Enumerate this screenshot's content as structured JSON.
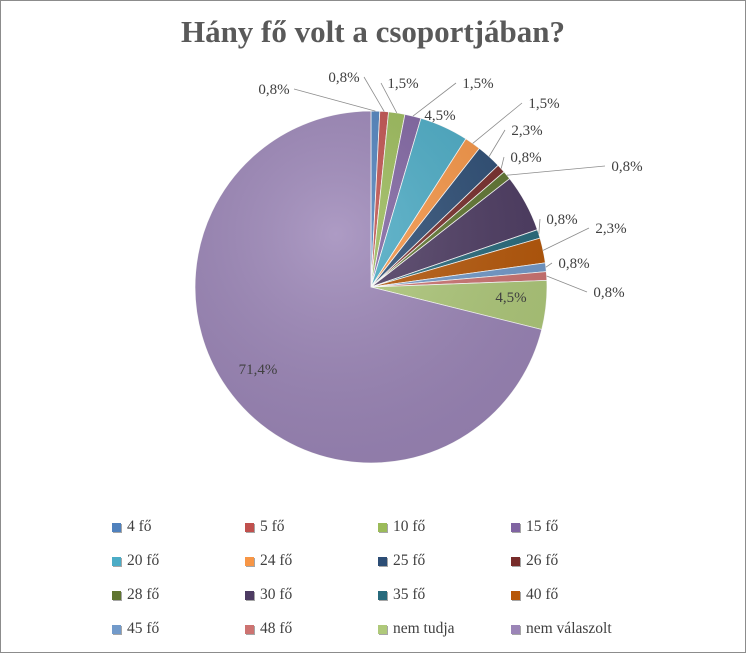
{
  "chart_data": {
    "type": "pie",
    "title": "Hány fő volt a csoportjában?",
    "legend_position": "bottom",
    "slices": [
      {
        "label": "4 fő",
        "value": 0.8,
        "value_label": "0,8%",
        "color": "#4f81bd"
      },
      {
        "label": "5 fő",
        "value": 0.8,
        "value_label": "0,8%",
        "color": "#c0504d"
      },
      {
        "label": "10 fő",
        "value": 1.5,
        "value_label": "1,5%",
        "color": "#9bbb59"
      },
      {
        "label": "15 fő",
        "value": 1.5,
        "value_label": "1,5%",
        "color": "#8064a2"
      },
      {
        "label": "20 fő",
        "value": 4.5,
        "value_label": "4,5%",
        "color": "#4bacc6"
      },
      {
        "label": "24 fő",
        "value": 1.5,
        "value_label": "1,5%",
        "color": "#f79646"
      },
      {
        "label": "25 fő",
        "value": 2.3,
        "value_label": "2,3%",
        "color": "#2c4d75"
      },
      {
        "label": "26 fő",
        "value": 0.8,
        "value_label": "0,8%",
        "color": "#772c2a"
      },
      {
        "label": "28 fő",
        "value": 0.8,
        "value_label": "0,8%",
        "color": "#5f7530"
      },
      {
        "label": "30 fő",
        "value": 5.3,
        "value_label": "",
        "color": "#4d3b62"
      },
      {
        "label": "35 fő",
        "value": 0.8,
        "value_label": "0,8%",
        "color": "#276a7c"
      },
      {
        "label": "40 fő",
        "value": 2.3,
        "value_label": "2,3%",
        "color": "#b65708"
      },
      {
        "label": "45 fő",
        "value": 0.8,
        "value_label": "0,8%",
        "color": "#729aca"
      },
      {
        "label": "48 fő",
        "value": 0.8,
        "value_label": "0,8%",
        "color": "#cd7371"
      },
      {
        "label": "nem tudja",
        "value": 4.5,
        "value_label": "4,5%",
        "color": "#afc97a"
      },
      {
        "label": "nem válaszolt",
        "value": 71.4,
        "value_label": "71,4%",
        "color": "#9b85b7"
      }
    ]
  }
}
